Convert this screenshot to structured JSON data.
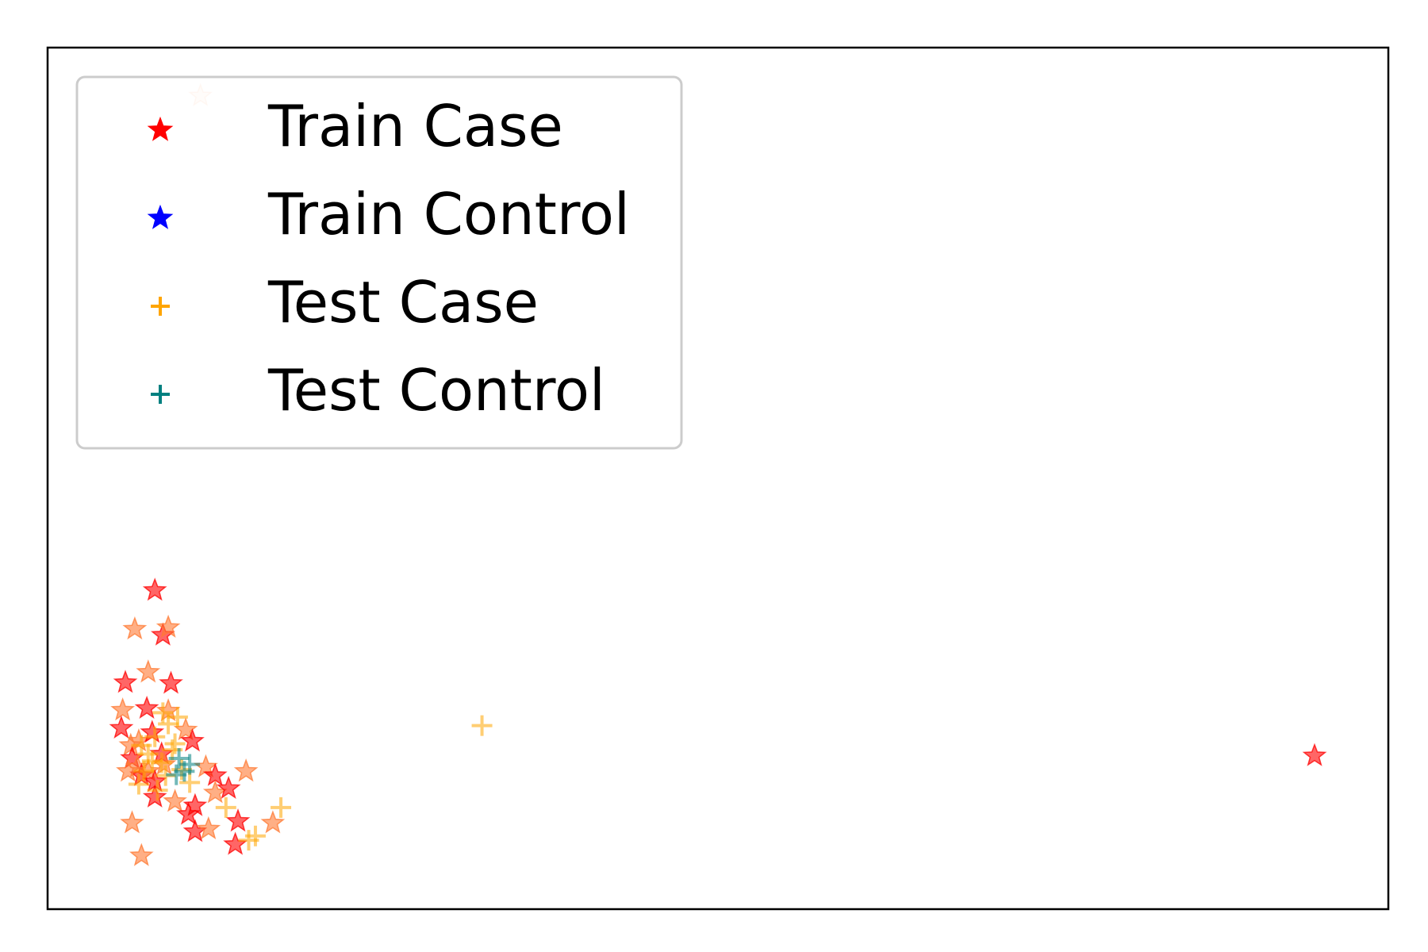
{
  "chart_data": {
    "type": "scatter",
    "title": "",
    "xlabel": "",
    "ylabel": "",
    "xlim": [
      0,
      100
    ],
    "ylim": [
      0,
      100
    ],
    "show_ticks": false,
    "grid": false,
    "legend": {
      "placement": "top-left"
    },
    "series": [
      {
        "name": "Train Case",
        "marker": "star",
        "colors": [
          "#ff0000",
          "#ff7a33"
        ],
        "points": [
          [
            8.0,
            37.0
          ],
          [
            6.5,
            32.5
          ],
          [
            8.6,
            31.8
          ],
          [
            9.0,
            32.7
          ],
          [
            5.8,
            26.3
          ],
          [
            7.5,
            27.5
          ],
          [
            9.2,
            26.2
          ],
          [
            5.6,
            23.1
          ],
          [
            7.4,
            23.3
          ],
          [
            9.0,
            23.0
          ],
          [
            5.5,
            21.0
          ],
          [
            6.8,
            19.5
          ],
          [
            7.8,
            20.5
          ],
          [
            10.3,
            20.8
          ],
          [
            10.8,
            19.5
          ],
          [
            6.2,
            19.0
          ],
          [
            6.3,
            17.5
          ],
          [
            6.7,
            16.5
          ],
          [
            7.0,
            15.5
          ],
          [
            7.5,
            16.0
          ],
          [
            8.5,
            18.0
          ],
          [
            8.7,
            16.8
          ],
          [
            8.0,
            14.8
          ],
          [
            11.8,
            16.5
          ],
          [
            12.5,
            15.5
          ],
          [
            14.8,
            16.0
          ],
          [
            8.0,
            13.0
          ],
          [
            9.5,
            12.5
          ],
          [
            11.0,
            12.0
          ],
          [
            12.5,
            13.5
          ],
          [
            10.5,
            11.0
          ],
          [
            6.3,
            10.0
          ],
          [
            11.0,
            9.0
          ],
          [
            12.0,
            9.3
          ],
          [
            14.2,
            10.2
          ],
          [
            16.8,
            10.0
          ],
          [
            14.0,
            7.5
          ],
          [
            7.0,
            6.2
          ],
          [
            94.5,
            17.8
          ],
          [
            11.4,
            94.4
          ],
          [
            13.5,
            14.0
          ],
          [
            6.0,
            16.0
          ]
        ]
      },
      {
        "name": "Train Control",
        "marker": "star",
        "colors": [
          "#0000ff"
        ],
        "points": []
      },
      {
        "name": "Test Case",
        "marker": "plus",
        "colors": [
          "#ffa500"
        ],
        "points": [
          [
            7.0,
            19.0
          ],
          [
            7.5,
            18.0
          ],
          [
            8.0,
            20.0
          ],
          [
            8.5,
            17.0
          ],
          [
            7.2,
            16.0
          ],
          [
            8.8,
            15.5
          ],
          [
            9.3,
            18.5
          ],
          [
            6.8,
            14.5
          ],
          [
            8.2,
            13.8
          ],
          [
            10.0,
            16.2
          ],
          [
            10.6,
            14.7
          ],
          [
            9.0,
            21.5
          ],
          [
            8.6,
            22.8
          ],
          [
            9.7,
            22.3
          ],
          [
            13.3,
            11.8
          ],
          [
            17.4,
            11.8
          ],
          [
            15.5,
            8.5
          ],
          [
            15.0,
            8.0
          ],
          [
            32.4,
            21.3
          ],
          [
            9.5,
            19.2
          ],
          [
            7.8,
            17.2
          ]
        ]
      },
      {
        "name": "Test Control",
        "marker": "plus",
        "colors": [
          "#008080"
        ],
        "points": [
          [
            9.8,
            17.5
          ],
          [
            10.6,
            16.8
          ],
          [
            10.2,
            16.0
          ],
          [
            9.6,
            15.6
          ]
        ]
      }
    ]
  }
}
